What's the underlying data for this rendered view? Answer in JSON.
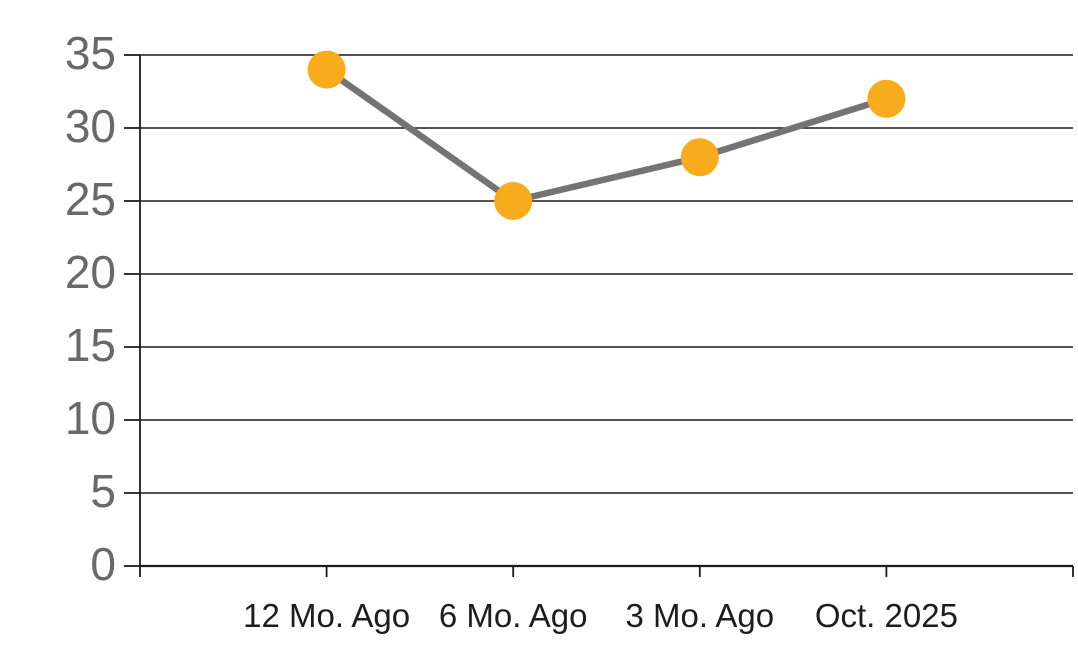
{
  "chart_data": {
    "type": "line",
    "categories": [
      "12 Mo. Ago",
      "6 Mo. Ago",
      "3 Mo. Ago",
      "Oct. 2025"
    ],
    "values": [
      34,
      25,
      28,
      32
    ],
    "title": "",
    "xlabel": "",
    "ylabel": "",
    "ylim": [
      0,
      35
    ],
    "yticks": [
      0,
      5,
      10,
      15,
      20,
      25,
      30,
      35
    ],
    "grid": true,
    "legend": false,
    "colors": {
      "marker": "#F9AC1B",
      "line": "#747474",
      "gridline": "#1c1c1c",
      "axis": "#1c1c1c",
      "y_tick_label": "#696969",
      "x_tick_label": "#1d1d1d",
      "background": "#ffffff"
    }
  }
}
